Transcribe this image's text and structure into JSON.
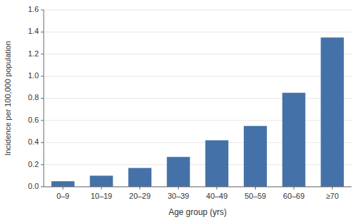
{
  "chart_data": {
    "type": "bar",
    "categories": [
      "0–9",
      "10–19",
      "20–29",
      "30–39",
      "40–49",
      "50–59",
      "60–69",
      "≥70"
    ],
    "values": [
      0.05,
      0.1,
      0.17,
      0.27,
      0.42,
      0.55,
      0.85,
      1.35
    ],
    "color": "#4472a8",
    "xlabel": "Age group (yrs)",
    "ylabel": "Incidence per 100,000 population",
    "ylim": [
      0,
      1.6
    ],
    "yticks": [
      {
        "value": 0,
        "label": "0.0"
      },
      0.2,
      0.4,
      0.6,
      0.8,
      {
        "value": 1,
        "label": "1.0"
      },
      1.2,
      1.4,
      1.6
    ]
  }
}
